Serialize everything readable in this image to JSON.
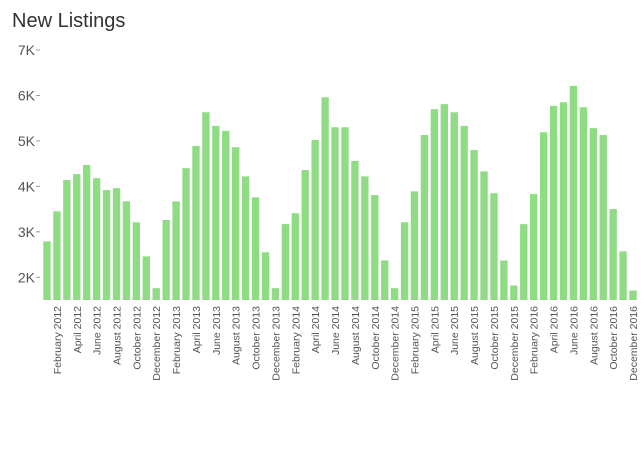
{
  "chart_data": {
    "type": "bar",
    "title": "New Listings",
    "categories": [
      null,
      "February 2012",
      null,
      "April 2012",
      null,
      "June 2012",
      null,
      "August 2012",
      null,
      "October 2012",
      null,
      "December 2012",
      null,
      "February 2013",
      null,
      "April 2013",
      null,
      "June 2013",
      null,
      "August 2013",
      null,
      "October 2013",
      null,
      "December 2013",
      null,
      "February 2014",
      null,
      "April 2014",
      null,
      "June 2014",
      null,
      "August 2014",
      null,
      "October 2014",
      null,
      "December 2014",
      null,
      "February 2015",
      null,
      "April 2015",
      null,
      "June 2015",
      null,
      "August 2015",
      null,
      "October 2015",
      null,
      "December 2015",
      null,
      "February 2016",
      null,
      "April 2016",
      null,
      "June 2016",
      null,
      "August 2016",
      null,
      "October 2016",
      null,
      "December 2016"
    ],
    "values": [
      2790,
      3450,
      4140,
      4270,
      4470,
      4180,
      3920,
      3960,
      3670,
      3210,
      2460,
      1760,
      3260,
      3670,
      4400,
      4890,
      5630,
      5330,
      5220,
      4860,
      4220,
      3760,
      2550,
      1760,
      3170,
      3410,
      4360,
      5020,
      5960,
      5300,
      5300,
      4560,
      4220,
      3810,
      2370,
      1760,
      3210,
      3890,
      5130,
      5700,
      5810,
      5630,
      5330,
      4800,
      4330,
      3850,
      2370,
      1820,
      3170,
      3830,
      5190,
      5770,
      5850,
      6210,
      5740,
      5280,
      5130,
      3500,
      2570,
      1710
    ],
    "color": "#8fdc84",
    "ylim": [
      1500,
      7000
    ],
    "yticks": [
      {
        "value": 2000,
        "label": "2K"
      },
      {
        "value": 3000,
        "label": "3K"
      },
      {
        "value": 4000,
        "label": "4K"
      },
      {
        "value": 5000,
        "label": "5K"
      },
      {
        "value": 6000,
        "label": "6K"
      },
      {
        "value": 7000,
        "label": "7K"
      }
    ],
    "grid": false
  }
}
